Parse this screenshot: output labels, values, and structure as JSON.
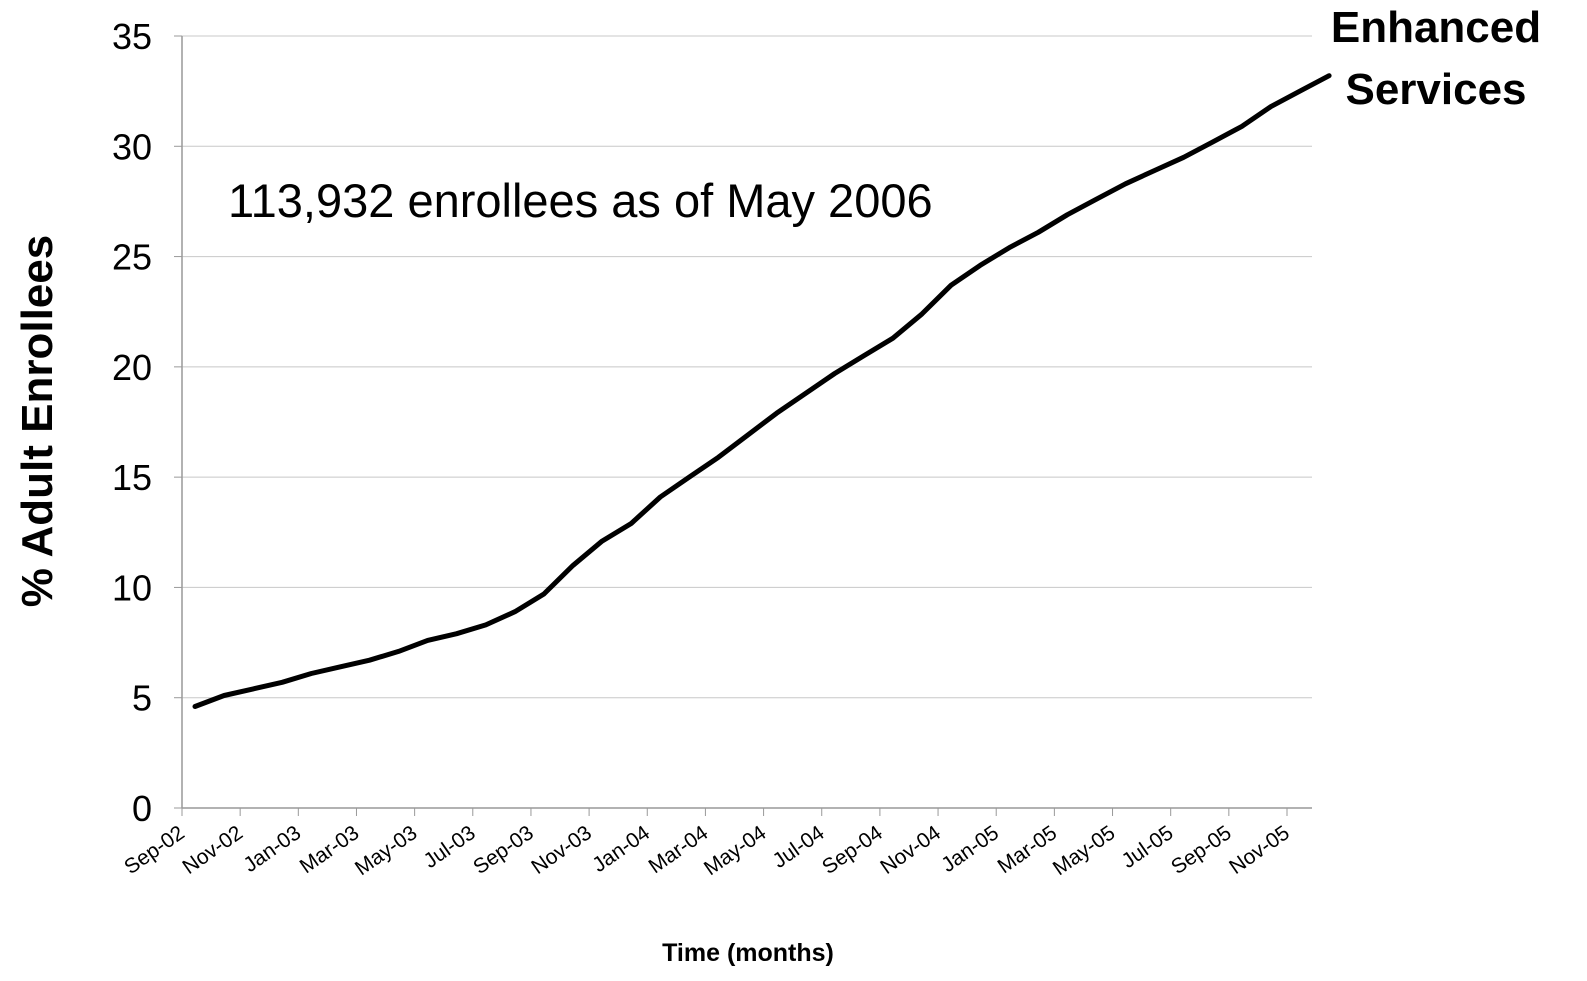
{
  "chart_data": {
    "type": "line",
    "title": "",
    "xlabel": "Time (months)",
    "ylabel": "% Adult Enrollees",
    "ylim": [
      0,
      35
    ],
    "yticks": [
      "0",
      "5",
      "10",
      "15",
      "20",
      "25",
      "30",
      "35"
    ],
    "grid": "horizontal",
    "legend": "none",
    "annotation": "113,932 enrollees as of May 2006",
    "series_label": [
      "Enhanced",
      "Services"
    ],
    "x_tick_labels": [
      "Sep-02",
      "Nov-02",
      "Jan-03",
      "Mar-03",
      "May-03",
      "Jul-03",
      "Sep-03",
      "Nov-03",
      "Jan-04",
      "Mar-04",
      "May-04",
      "Jul-04",
      "Sep-04",
      "Nov-04",
      "Jan-05",
      "Mar-05",
      "May-05",
      "Jul-05",
      "Sep-05",
      "Nov-05"
    ],
    "x": [
      "Sep-02",
      "Oct-02",
      "Nov-02",
      "Dec-02",
      "Jan-03",
      "Feb-03",
      "Mar-03",
      "Apr-03",
      "May-03",
      "Jun-03",
      "Jul-03",
      "Aug-03",
      "Sep-03",
      "Oct-03",
      "Nov-03",
      "Dec-03",
      "Jan-04",
      "Feb-04",
      "Mar-04",
      "Apr-04",
      "May-04",
      "Jun-04",
      "Jul-04",
      "Aug-04",
      "Sep-04",
      "Oct-04",
      "Nov-04",
      "Dec-04",
      "Jan-05",
      "Feb-05",
      "Mar-05",
      "Apr-05",
      "May-05",
      "Jun-05",
      "Jul-05",
      "Aug-05",
      "Sep-05",
      "Oct-05",
      "Nov-05",
      "Dec-05"
    ],
    "series": [
      {
        "values": [
          4.6,
          5.1,
          5.4,
          5.7,
          6.1,
          6.4,
          6.7,
          7.1,
          7.6,
          7.9,
          8.3,
          8.9,
          9.7,
          11.0,
          12.1,
          12.9,
          14.1,
          15.0,
          15.9,
          16.9,
          17.9,
          18.8,
          19.7,
          20.5,
          21.3,
          22.4,
          23.7,
          24.6,
          25.4,
          26.1,
          26.9,
          27.6,
          28.3,
          28.9,
          29.5,
          30.2,
          30.9,
          31.8,
          32.5,
          33.2
        ],
        "color": "#000000"
      }
    ]
  }
}
